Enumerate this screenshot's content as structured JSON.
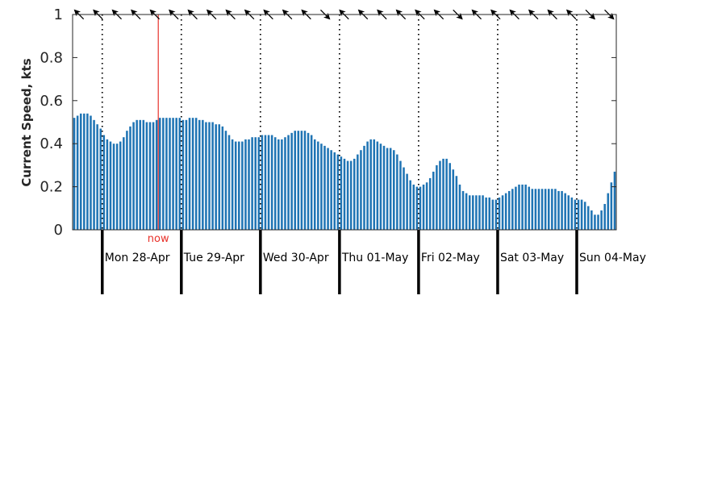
{
  "chart_data": {
    "type": "bar",
    "ylabel": "Current Speed, kts",
    "ylim": [
      0,
      1
    ],
    "yticks": [
      0,
      0.2,
      0.4,
      0.6,
      0.8,
      1
    ],
    "ytick_labels": [
      "0",
      "0.2",
      "0.4",
      "0.6",
      "0.8",
      "1"
    ],
    "grid": false,
    "bar_color": "#1f74b4",
    "now_color": "#e8312a",
    "hours_before_first_day": 9,
    "day_labels": [
      "Mon 28-Apr",
      "Tue 29-Apr",
      "Wed 30-Apr",
      "Thu 01-May",
      "Fri 02-May",
      "Sat 03-May",
      "Sun 04-May"
    ],
    "now": {
      "label": "now",
      "hour": 26
    },
    "direction_arrows": {
      "headings_deg": [
        225,
        225,
        225,
        225,
        225,
        225,
        225,
        225,
        225,
        225,
        225,
        225,
        225,
        45,
        225,
        225,
        225,
        225,
        225,
        225,
        45,
        225,
        225,
        225,
        225,
        225,
        225,
        45,
        45
      ]
    },
    "values": [
      0.52,
      0.53,
      0.54,
      0.54,
      0.54,
      0.53,
      0.51,
      0.49,
      0.47,
      0.44,
      0.42,
      0.41,
      0.4,
      0.4,
      0.41,
      0.43,
      0.46,
      0.48,
      0.5,
      0.51,
      0.51,
      0.51,
      0.5,
      0.5,
      0.5,
      0.51,
      0.52,
      0.52,
      0.52,
      0.52,
      0.52,
      0.52,
      0.52,
      0.51,
      0.51,
      0.52,
      0.52,
      0.52,
      0.51,
      0.51,
      0.5,
      0.5,
      0.5,
      0.49,
      0.49,
      0.48,
      0.46,
      0.44,
      0.42,
      0.41,
      0.41,
      0.41,
      0.42,
      0.42,
      0.43,
      0.43,
      0.43,
      0.44,
      0.44,
      0.44,
      0.44,
      0.43,
      0.42,
      0.42,
      0.43,
      0.44,
      0.45,
      0.46,
      0.46,
      0.46,
      0.46,
      0.45,
      0.44,
      0.42,
      0.41,
      0.4,
      0.39,
      0.38,
      0.37,
      0.36,
      0.35,
      0.34,
      0.33,
      0.32,
      0.32,
      0.33,
      0.35,
      0.37,
      0.39,
      0.41,
      0.42,
      0.42,
      0.41,
      0.4,
      0.39,
      0.38,
      0.38,
      0.37,
      0.35,
      0.32,
      0.29,
      0.26,
      0.23,
      0.21,
      0.2,
      0.2,
      0.21,
      0.22,
      0.24,
      0.27,
      0.3,
      0.32,
      0.33,
      0.33,
      0.31,
      0.28,
      0.25,
      0.21,
      0.18,
      0.17,
      0.16,
      0.16,
      0.16,
      0.16,
      0.16,
      0.15,
      0.15,
      0.14,
      0.14,
      0.15,
      0.16,
      0.17,
      0.18,
      0.19,
      0.2,
      0.21,
      0.21,
      0.21,
      0.2,
      0.19,
      0.19,
      0.19,
      0.19,
      0.19,
      0.19,
      0.19,
      0.19,
      0.18,
      0.18,
      0.17,
      0.16,
      0.15,
      0.14,
      0.14,
      0.14,
      0.13,
      0.11,
      0.09,
      0.07,
      0.07,
      0.09,
      0.12,
      0.17,
      0.22,
      0.27
    ]
  }
}
